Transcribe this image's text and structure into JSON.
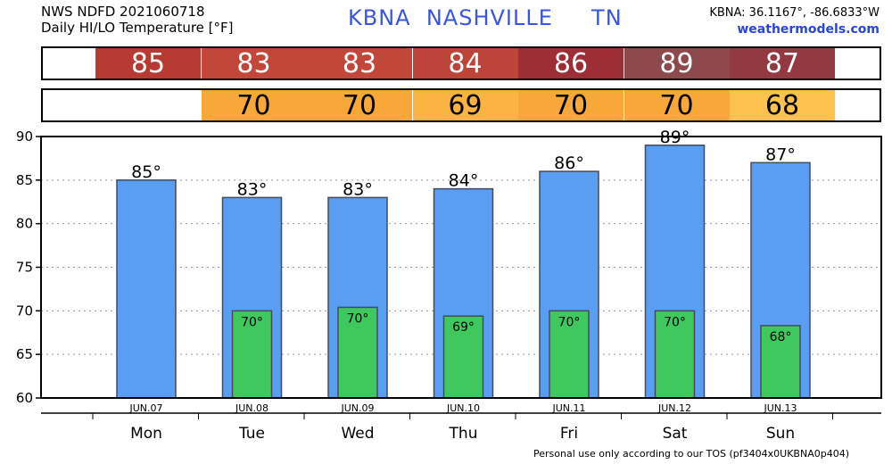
{
  "header": {
    "line1": "NWS NDFD 2021060718",
    "line2": "Daily HI/LO Temperature [°F]",
    "station_title": "KBNA  NASHVILLE     TN",
    "coords": "KBNA: 36.1167°, -86.6833°W",
    "site": "weathermodels.com"
  },
  "footer": "Personal use only according to our TOS (pf3404x0UKBNA0p404)",
  "chart_data": {
    "type": "bar",
    "categories": [
      "JUN.07",
      "JUN.08",
      "JUN.09",
      "JUN.10",
      "JUN.11",
      "JUN.12",
      "JUN.13"
    ],
    "days": [
      "Mon",
      "Tue",
      "Wed",
      "Thu",
      "Fri",
      "Sat",
      "Sun"
    ],
    "series": [
      {
        "name": "HI",
        "values": [
          85,
          83,
          83,
          84,
          86,
          89,
          87
        ],
        "labels": [
          "85°",
          "83°",
          "83°",
          "84°",
          "86°",
          "89°",
          "87°"
        ],
        "color": "#5a9ef3"
      },
      {
        "name": "LO",
        "values": [
          null,
          70,
          70.4,
          69.4,
          70,
          70,
          68.3
        ],
        "labels": [
          "",
          "70°",
          "70°",
          "69°",
          "70°",
          "70°",
          "68°"
        ],
        "color": "#3ec85e"
      }
    ],
    "hi_strip": {
      "values": [
        "85",
        "83",
        "83",
        "84",
        "86",
        "89",
        "87"
      ],
      "colors": [
        "#b83b33",
        "#c2473a",
        "#c2473a",
        "#bc4438",
        "#9e2e35",
        "#8e4a4a",
        "#933a40"
      ]
    },
    "lo_strip": {
      "values": [
        "",
        "70",
        "70",
        "69",
        "70",
        "70",
        "68"
      ],
      "colors": [
        "#ffffff",
        "#f8a838",
        "#f8a838",
        "#fbb442",
        "#f8a838",
        "#f8a838",
        "#fdc24e"
      ]
    },
    "ylim": [
      60,
      90
    ],
    "yticks": [
      60,
      65,
      70,
      75,
      80,
      85,
      90
    ],
    "grid": true
  }
}
